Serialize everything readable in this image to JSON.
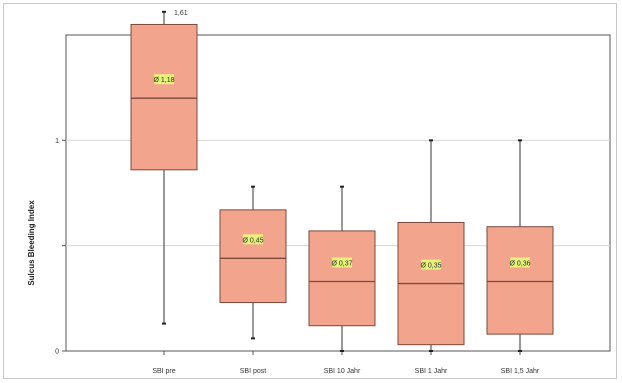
{
  "chart_data": {
    "type": "box",
    "title": "",
    "xlabel": "",
    "ylabel": "Sulcus Bleeding Index",
    "ylim": [
      0,
      1.5
    ],
    "yticks": [
      {
        "value": 0,
        "label": "0"
      },
      {
        "value": 0.5,
        "label": ""
      },
      {
        "value": 1,
        "label": "1"
      }
    ],
    "grid": true,
    "colors": {
      "box_fill": "#f2a48c",
      "box_stroke": "#7a4a3c",
      "mean_label_bg": "#e8f27a",
      "grid": "#d6d6d6"
    },
    "categories": [
      "SBI pre",
      "SBI post",
      "SBI 10 Jahr",
      "SBI 1 Jahr",
      "SBI 1,5 Jahr"
    ],
    "boxes": [
      {
        "min": 0.13,
        "q1": 0.86,
        "median": 1.2,
        "q3": 1.55,
        "max": 1.61,
        "mean_label": "Ø 1,18",
        "max_label": "1,61"
      },
      {
        "min": 0.06,
        "q1": 0.23,
        "median": 0.44,
        "q3": 0.67,
        "max": 0.78,
        "mean_label": "Ø 0,45",
        "max_label": ""
      },
      {
        "min": 0.0,
        "q1": 0.12,
        "median": 0.33,
        "q3": 0.57,
        "max": 0.78,
        "mean_label": "Ø 0,37",
        "max_label": ""
      },
      {
        "min": 0.0,
        "q1": 0.03,
        "median": 0.32,
        "q3": 0.61,
        "max": 1.0,
        "mean_label": "Ø 0,35",
        "max_label": ""
      },
      {
        "min": 0.0,
        "q1": 0.08,
        "median": 0.33,
        "q3": 0.59,
        "max": 1.0,
        "mean_label": "Ø 0,36",
        "max_label": ""
      }
    ]
  }
}
